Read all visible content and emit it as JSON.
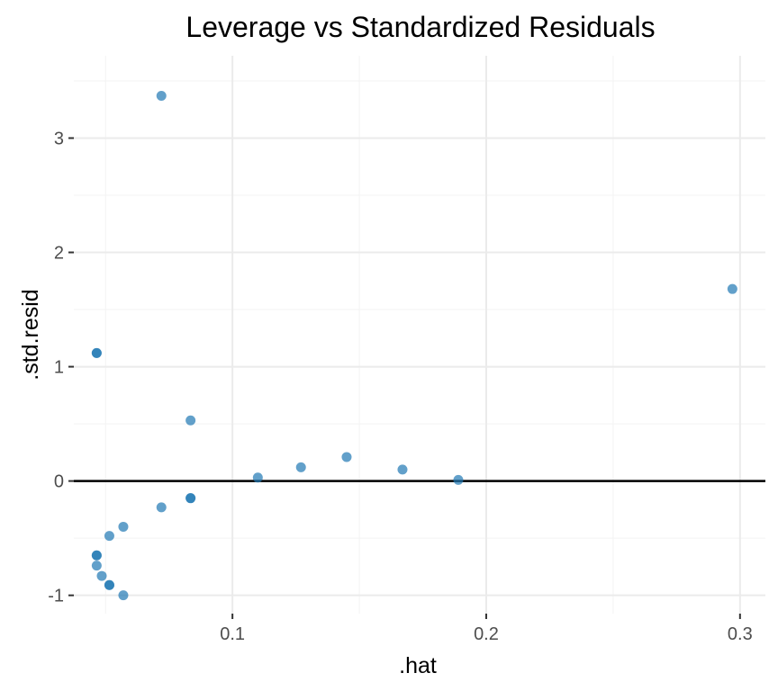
{
  "chart_data": {
    "type": "scatter",
    "title": "Leverage vs Standardized Residuals",
    "xlabel": ".hat",
    "ylabel": ".std.resid",
    "xlim": [
      0.0375,
      0.31
    ],
    "ylim": [
      -1.16,
      3.72
    ],
    "x_ticks": [
      0.1,
      0.2,
      0.3
    ],
    "x_tick_labels": [
      "0.1",
      "0.2",
      "0.3"
    ],
    "y_ticks": [
      -1,
      0,
      1,
      2,
      3
    ],
    "y_tick_labels": [
      "-1",
      "0",
      "1",
      "2",
      "3"
    ],
    "x_minor_ticks": [
      0.05,
      0.15,
      0.25
    ],
    "y_minor_ticks": [
      -0.5,
      0.5,
      1.5,
      2.5,
      3.5
    ],
    "grid": true,
    "reference_line_y": 0,
    "point_color": "#1f77b4",
    "points": [
      {
        "x": 0.072,
        "y": 3.37
      },
      {
        "x": 0.297,
        "y": 1.68
      },
      {
        "x": 0.0465,
        "y": 1.12
      },
      {
        "x": 0.0465,
        "y": 1.12
      },
      {
        "x": 0.0835,
        "y": 0.53
      },
      {
        "x": 0.145,
        "y": 0.21
      },
      {
        "x": 0.127,
        "y": 0.12
      },
      {
        "x": 0.167,
        "y": 0.1
      },
      {
        "x": 0.11,
        "y": 0.03
      },
      {
        "x": 0.189,
        "y": 0.01
      },
      {
        "x": 0.0835,
        "y": -0.15
      },
      {
        "x": 0.0835,
        "y": -0.15
      },
      {
        "x": 0.072,
        "y": -0.23
      },
      {
        "x": 0.057,
        "y": -0.4
      },
      {
        "x": 0.0515,
        "y": -0.48
      },
      {
        "x": 0.0465,
        "y": -0.65
      },
      {
        "x": 0.0465,
        "y": -0.65
      },
      {
        "x": 0.0465,
        "y": -0.74
      },
      {
        "x": 0.0485,
        "y": -0.83
      },
      {
        "x": 0.0515,
        "y": -0.91
      },
      {
        "x": 0.0515,
        "y": -0.91
      },
      {
        "x": 0.057,
        "y": -1.0
      }
    ]
  }
}
